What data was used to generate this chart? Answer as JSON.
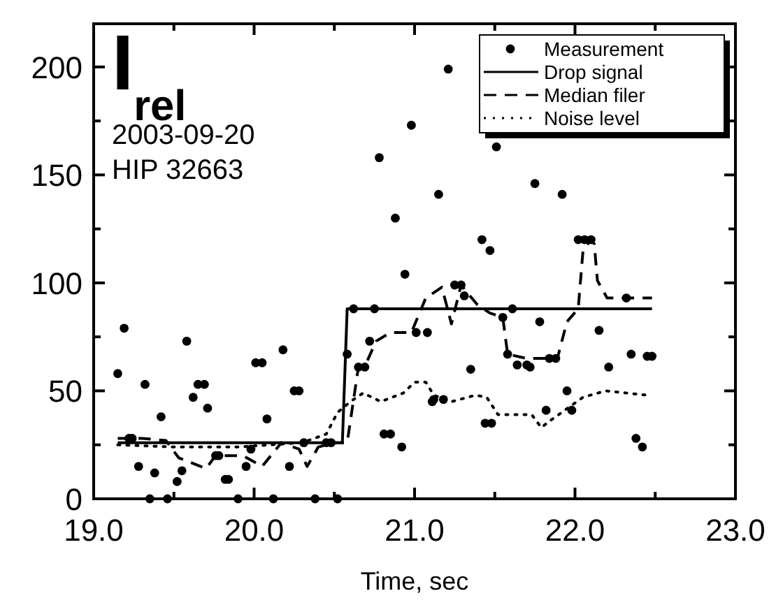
{
  "chart_data": {
    "type": "scatter",
    "xlabel": "Time, sec",
    "annotations": [
      "I$_{rel}$",
      "2003-09-20",
      "HIP 32663"
    ],
    "xlim": [
      19,
      23
    ],
    "ylim": [
      0,
      220
    ],
    "xticks": [
      {
        "value": 19,
        "label": "19.0"
      },
      {
        "value": 19.5,
        "label": null
      },
      {
        "value": 20,
        "label": "20.0"
      },
      {
        "value": 20.5,
        "label": null
      },
      {
        "value": 21,
        "label": "21.0"
      },
      {
        "value": 21.5,
        "label": null
      },
      {
        "value": 22,
        "label": "22.0"
      },
      {
        "value": 22.5,
        "label": null
      },
      {
        "value": 23,
        "label": "23.0"
      }
    ],
    "yticks": [
      0,
      {
        "value": 25,
        "label": null
      },
      50,
      {
        "value": 75,
        "label": null
      },
      100,
      {
        "value": 125,
        "label": null
      },
      150,
      {
        "value": 175,
        "label": null
      },
      200
    ],
    "grid": false,
    "legend": "top right",
    "series": [
      {
        "name": "Measurement",
        "marker": "circle",
        "color": "#000000",
        "x": [
          19.15,
          19.19,
          19.22,
          19.24,
          19.28,
          19.32,
          19.35,
          19.38,
          19.42,
          19.46,
          19.52,
          19.55,
          19.58,
          19.62,
          19.65,
          19.69,
          19.71,
          19.76,
          19.78,
          19.82,
          19.84,
          19.9,
          19.95,
          19.98,
          20.01,
          20.05,
          20.08,
          20.12,
          20.18,
          20.22,
          20.25,
          20.28,
          20.31,
          20.38,
          20.45,
          20.48,
          20.52,
          20.58,
          20.62,
          20.65,
          20.69,
          20.72,
          20.75,
          20.78,
          20.81,
          20.85,
          20.88,
          20.92,
          20.94,
          20.98,
          21.01,
          21.08,
          21.11,
          21.12,
          21.15,
          21.18,
          21.21,
          21.25,
          21.29,
          21.31,
          21.35,
          21.42,
          21.44,
          21.47,
          21.48,
          21.51,
          21.55,
          21.58,
          21.61,
          21.64,
          21.7,
          21.72,
          21.75,
          21.78,
          21.82,
          21.84,
          21.88,
          21.92,
          21.95,
          21.98,
          22.02,
          22.06,
          22.1,
          22.15,
          22.21,
          22.32,
          22.35,
          22.38,
          22.42,
          22.45,
          22.48
        ],
        "values": [
          58,
          79,
          28,
          28,
          15,
          53,
          0,
          12,
          38,
          0,
          8,
          13,
          73,
          47,
          53,
          53,
          42,
          20,
          20,
          9,
          9,
          0,
          15,
          23,
          63,
          63,
          37,
          0,
          69,
          15,
          50,
          50,
          26,
          0,
          26,
          26,
          0,
          67,
          88,
          61,
          61,
          73,
          88,
          158,
          30,
          30,
          130,
          24,
          104,
          173,
          77,
          77,
          45,
          46,
          141,
          46,
          199,
          99,
          99,
          94,
          60,
          120,
          35,
          115,
          35,
          163,
          84,
          67,
          88,
          62,
          62,
          61,
          146,
          82,
          41,
          65,
          65,
          141,
          50,
          41,
          120,
          120,
          120,
          78,
          61,
          93,
          67,
          28,
          24,
          66,
          66
        ]
      },
      {
        "name": "Drop signal",
        "type": "line",
        "line_style": "solid",
        "color": "#000000",
        "x": [
          19.15,
          20.55,
          20.58,
          22.48
        ],
        "values": [
          26,
          26,
          88,
          88
        ]
      },
      {
        "name": "Median filer",
        "type": "line",
        "line_style": "dashed",
        "color": "#000000",
        "x": [
          19.15,
          19.3,
          19.45,
          19.53,
          19.7,
          19.76,
          19.93,
          20.05,
          20.17,
          20.28,
          20.33,
          20.4,
          20.5,
          20.58,
          20.62,
          20.65,
          20.7,
          20.76,
          20.85,
          20.98,
          21.07,
          21.17,
          21.23,
          21.29,
          21.39,
          21.47,
          21.55,
          21.58,
          21.7,
          21.89,
          21.95,
          22.02,
          22.05,
          22.1,
          22.12,
          22.14,
          22.2,
          22.48
        ],
        "values": [
          28,
          28,
          27,
          19,
          14,
          20,
          20,
          15,
          26,
          23,
          15,
          24,
          26,
          26,
          46,
          61,
          63,
          73,
          77,
          77,
          93,
          98,
          81,
          99,
          90,
          86,
          84,
          67,
          65,
          65,
          82,
          88,
          115,
          120,
          118,
          101,
          93,
          93
        ]
      },
      {
        "name": "Noise level",
        "type": "line",
        "line_style": "dotted",
        "color": "#000000",
        "x": [
          19.15,
          19.5,
          19.9,
          20.3,
          20.45,
          20.52,
          20.6,
          20.68,
          20.79,
          20.93,
          21.0,
          21.07,
          21.12,
          21.23,
          21.38,
          21.45,
          21.52,
          21.73,
          21.79,
          21.86,
          22.05,
          22.19,
          22.45
        ],
        "values": [
          25,
          24,
          24,
          26,
          30,
          40,
          45,
          49,
          45,
          49,
          54,
          54,
          48,
          45,
          48,
          47,
          39,
          39,
          33,
          37,
          47,
          50,
          48
        ]
      }
    ]
  }
}
